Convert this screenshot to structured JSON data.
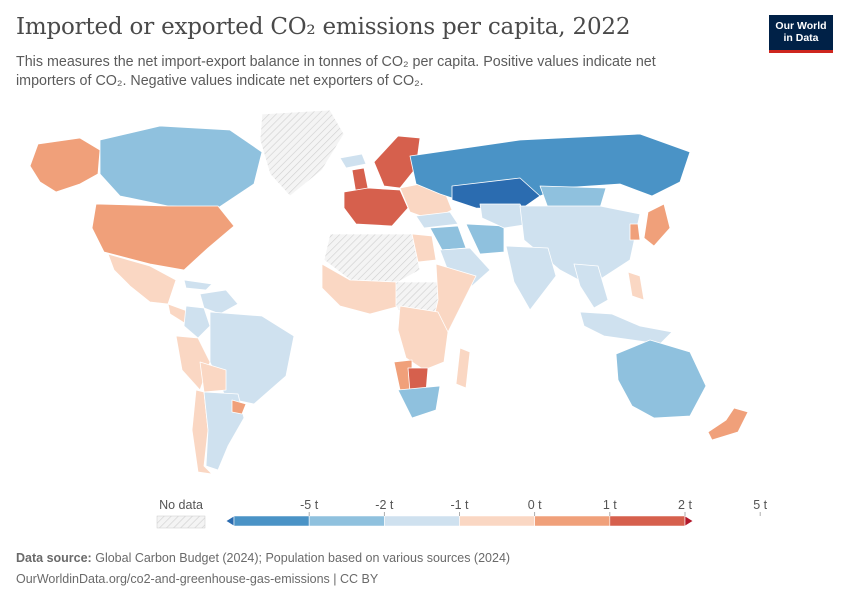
{
  "header": {
    "title": "Imported or exported CO₂ emissions per capita, 2022",
    "subtitle": "This measures the net import-export balance in tonnes of CO₂ per capita. Positive values indicate net importers of CO₂. Negative values indicate net exporters of CO₂.",
    "logo_text": "Our World\nin Data",
    "logo_colors": {
      "background": "#002147",
      "accent": "#ce261e"
    }
  },
  "legend": {
    "no_data_label": "No data",
    "ticks": [
      "-5 t",
      "-2 t",
      "-1 t",
      "0 t",
      "1 t",
      "2 t",
      "5 t"
    ],
    "colors": [
      "#2b6cb0",
      "#4a93c6",
      "#8fc1de",
      "#cfe1ef",
      "#fad7c3",
      "#f0a07a",
      "#d6604d",
      "#b2182b"
    ]
  },
  "map": {
    "regions": [
      {
        "name": "Alaska",
        "color": "#f0a07a"
      },
      {
        "name": "Canada",
        "color": "#8fc1de"
      },
      {
        "name": "Greenland",
        "color": "no-data"
      },
      {
        "name": "United States",
        "color": "#f0a07a"
      },
      {
        "name": "Mexico",
        "color": "#fad7c3"
      },
      {
        "name": "Central America",
        "color": "#fad7c3"
      },
      {
        "name": "Cuba",
        "color": "#cfe1ef"
      },
      {
        "name": "Venezuela",
        "color": "#cfe1ef"
      },
      {
        "name": "Colombia",
        "color": "#cfe1ef"
      },
      {
        "name": "Peru",
        "color": "#fad7c3"
      },
      {
        "name": "Brazil",
        "color": "#cfe1ef"
      },
      {
        "name": "Bolivia",
        "color": "#fad7c3"
      },
      {
        "name": "Chile",
        "color": "#fad7c3"
      },
      {
        "name": "Argentina",
        "color": "#cfe1ef"
      },
      {
        "name": "Uruguay",
        "color": "#f0a07a"
      },
      {
        "name": "Iceland",
        "color": "#cfe1ef"
      },
      {
        "name": "United Kingdom",
        "color": "#d6604d"
      },
      {
        "name": "Scandinavia",
        "color": "#d6604d"
      },
      {
        "name": "Western Europe",
        "color": "#d6604d"
      },
      {
        "name": "Eastern Europe",
        "color": "#fad7c3"
      },
      {
        "name": "Russia",
        "color": "#4a93c6"
      },
      {
        "name": "Kazakhstan",
        "color": "#2b6cb0"
      },
      {
        "name": "Turkey",
        "color": "#cfe1ef"
      },
      {
        "name": "Middle East",
        "color": "#8fc1de"
      },
      {
        "name": "Saudi Arabia",
        "color": "#cfe1ef"
      },
      {
        "name": "Iran",
        "color": "#8fc1de"
      },
      {
        "name": "Central Asia",
        "color": "#cfe1ef"
      },
      {
        "name": "Mongolia",
        "color": "#8fc1de"
      },
      {
        "name": "China",
        "color": "#cfe1ef"
      },
      {
        "name": "India",
        "color": "#cfe1ef"
      },
      {
        "name": "Japan",
        "color": "#f0a07a"
      },
      {
        "name": "Korea",
        "color": "#f0a07a"
      },
      {
        "name": "Southeast Asia",
        "color": "#cfe1ef"
      },
      {
        "name": "Philippines",
        "color": "#fad7c3"
      },
      {
        "name": "Indonesia",
        "color": "#cfe1ef"
      },
      {
        "name": "Australia",
        "color": "#8fc1de"
      },
      {
        "name": "New Zealand",
        "color": "#f0a07a"
      },
      {
        "name": "North Africa",
        "color": "no-data"
      },
      {
        "name": "Egypt",
        "color": "#fad7c3"
      },
      {
        "name": "West Africa",
        "color": "#fad7c3"
      },
      {
        "name": "Central Africa",
        "color": "no-data"
      },
      {
        "name": "East Africa",
        "color": "#fad7c3"
      },
      {
        "name": "Southern Africa",
        "color": "#fad7c3"
      },
      {
        "name": "Namibia",
        "color": "#f0a07a"
      },
      {
        "name": "Botswana",
        "color": "#d6604d"
      },
      {
        "name": "South Africa",
        "color": "#8fc1de"
      },
      {
        "name": "Madagascar",
        "color": "#fad7c3"
      }
    ]
  },
  "footer": {
    "source_label": "Data source:",
    "source_text": "Global Carbon Budget (2024); Population based on various sources (2024)",
    "url_line": "OurWorldinData.org/co2-and-greenhouse-gas-emissions | CC BY"
  }
}
